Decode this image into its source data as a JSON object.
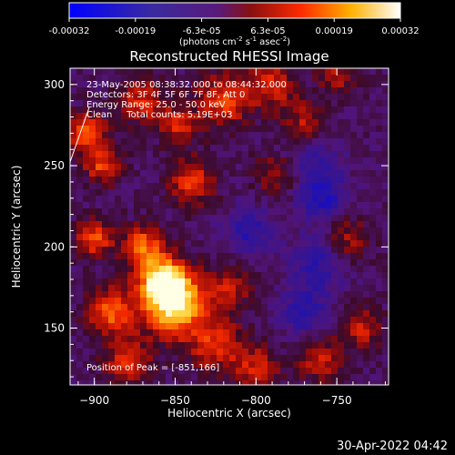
{
  "chart_data": {
    "type": "heatmap",
    "title": "Reconstructed RHESSI Image",
    "xlabel": "Heliocentric X (arcsec)",
    "ylabel": "Heliocentric Y (arcsec)",
    "xlim": [
      -915,
      -718
    ],
    "ylim": [
      115,
      310
    ],
    "xticks": [
      -900,
      -850,
      -800,
      -750
    ],
    "yticks": [
      150,
      200,
      250,
      300
    ],
    "colorbar": {
      "ticks": [
        "-0.00032",
        "-0.00019",
        "-6.3e-05",
        "6.3e-05",
        "0.00019",
        "0.00032"
      ],
      "range": [
        -0.00032,
        0.00032
      ],
      "units_label": "(photons cm",
      "units_exp1": "-2",
      "units_mid": " s",
      "units_exp2": "-1",
      "units_mid2": " asec",
      "units_exp3": "-2",
      "units_end": ")"
    },
    "annotations": [
      "23-May-2005 08:38:32.000 to 08:44:32.000",
      "Detectors: 3F 4F 5F 6F 7F 8F, Att 0",
      "Energy Range: 25.0 - 50.0 keV",
      "Clean     Total counts: 5.19E+03"
    ],
    "peak_label": "Position of Peak = [-851,166]",
    "peak": [
      -851,
      166
    ],
    "colormap": "blue-purple-red-yellow-white"
  },
  "footer": {
    "timestamp": "30-Apr-2022 04:42"
  }
}
